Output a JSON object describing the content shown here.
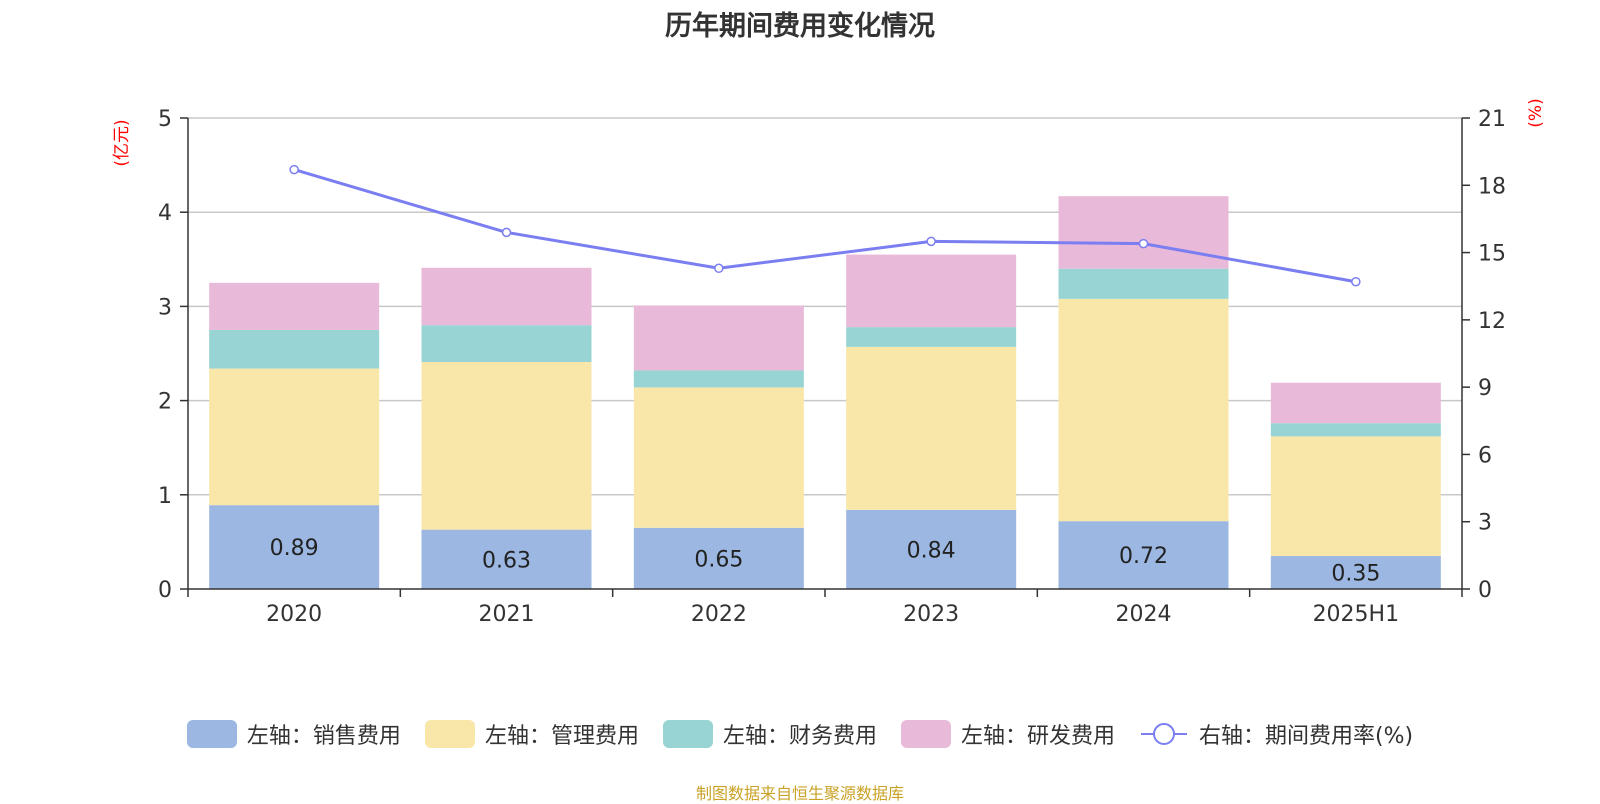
{
  "chart_data": {
    "type": "bar",
    "stacked": true,
    "title": "历年期间费用变化情况",
    "categories": [
      "2020",
      "2021",
      "2022",
      "2023",
      "2024",
      "2025H1"
    ],
    "y_left": {
      "unit_label": "(亿元)",
      "ylim": [
        0,
        5
      ],
      "ticks": [
        "0",
        "1",
        "2",
        "3",
        "4",
        "5"
      ]
    },
    "y_right": {
      "unit_label": "(%)",
      "ylim": [
        0,
        21
      ],
      "ticks": [
        "0",
        "3",
        "6",
        "9",
        "12",
        "15",
        "18",
        "21"
      ]
    },
    "series": [
      {
        "name": "左轴：销售费用",
        "axis": "left",
        "color": "#9bb7e2",
        "values": [
          0.89,
          0.63,
          0.65,
          0.84,
          0.72,
          0.35
        ],
        "labels": [
          "0.89",
          "0.63",
          "0.65",
          "0.84",
          "0.72",
          "0.35"
        ]
      },
      {
        "name": "左轴：管理费用",
        "axis": "left",
        "color": "#f8e7a8",
        "values": [
          1.45,
          1.78,
          1.49,
          1.73,
          2.36,
          1.27
        ]
      },
      {
        "name": "左轴：财务费用",
        "axis": "left",
        "color": "#98d4d4",
        "values": [
          0.41,
          0.39,
          0.18,
          0.21,
          0.32,
          0.14
        ]
      },
      {
        "name": "左轴：研发费用",
        "axis": "left",
        "color": "#e8b9d9",
        "values": [
          0.5,
          0.61,
          0.69,
          0.77,
          0.77,
          0.43
        ]
      },
      {
        "name": "右轴：期间费用率(%)",
        "axis": "right",
        "type": "line",
        "color": "#7a7ef0",
        "values": [
          18.7,
          15.9,
          14.3,
          15.5,
          15.4,
          13.7
        ]
      }
    ],
    "grid": true,
    "legend_position": "bottom"
  },
  "source_note": "制图数据来自恒生聚源数据库"
}
